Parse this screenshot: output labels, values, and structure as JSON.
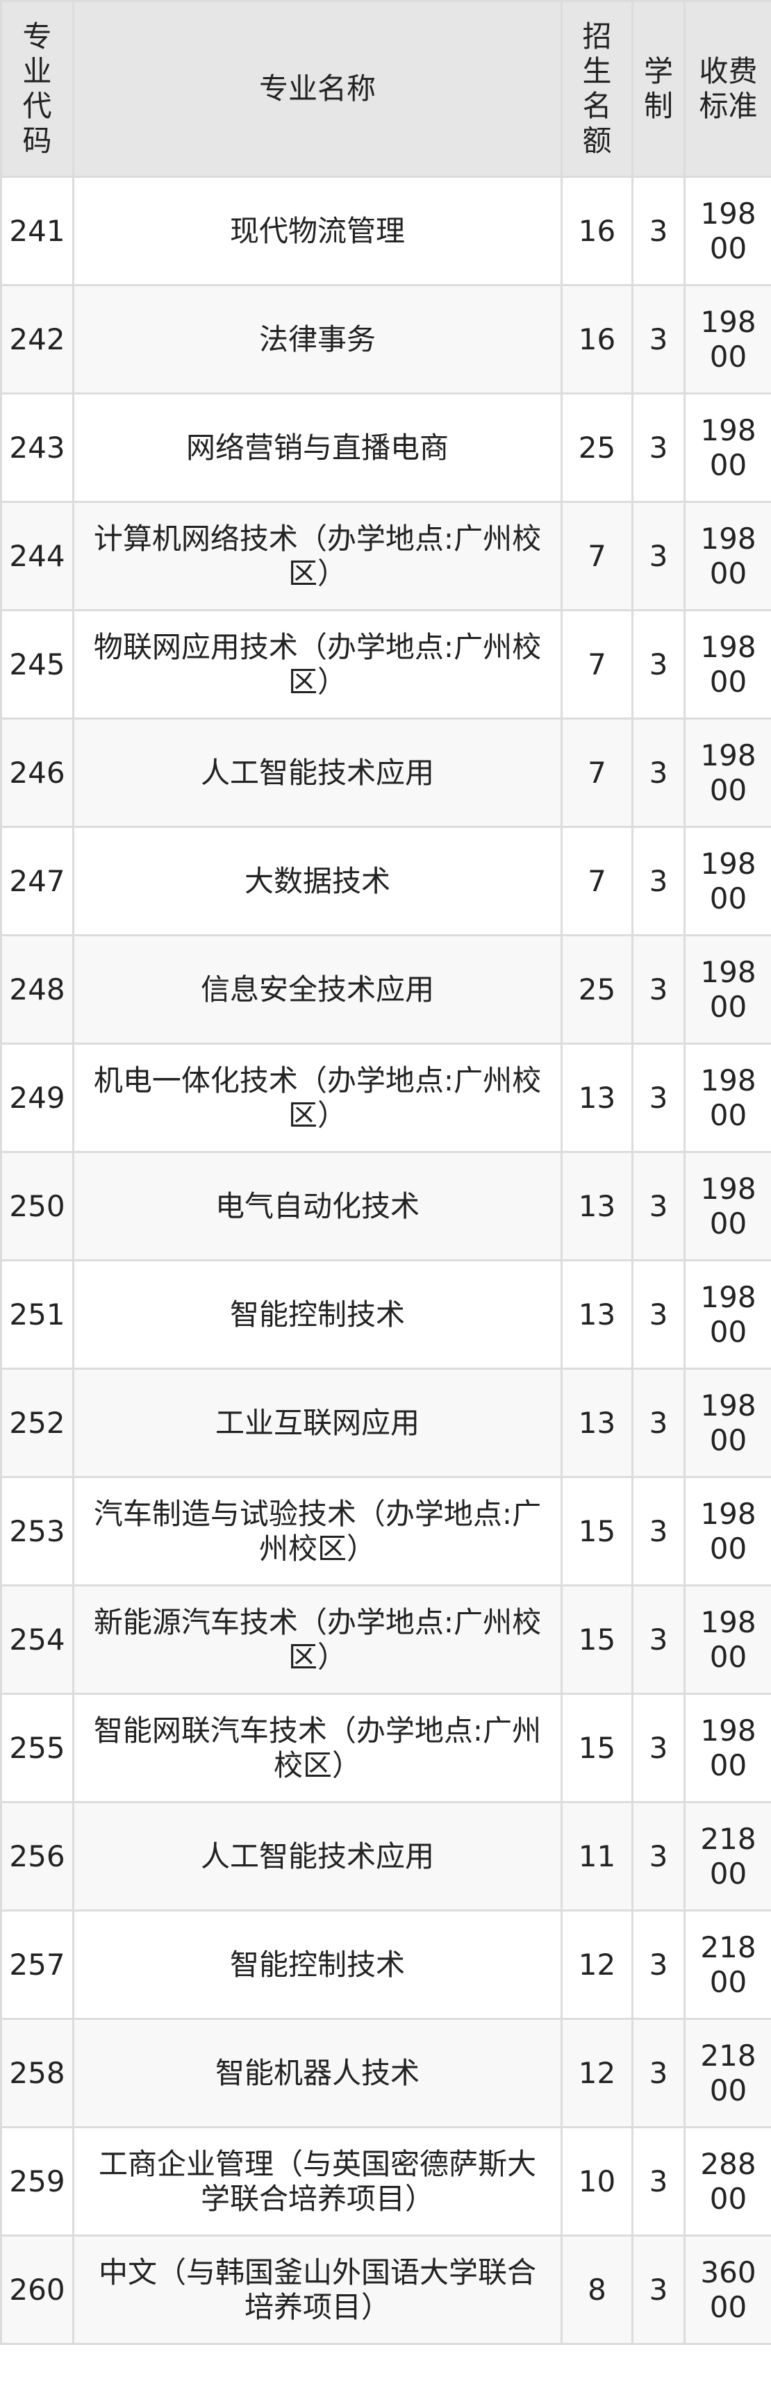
{
  "table": {
    "headers": {
      "code": "专业代码",
      "name": "专业名称",
      "quota": "招生名额",
      "duration": "学制",
      "fee": "收费标准"
    },
    "rows": [
      {
        "code": "241",
        "name": "现代物流管理",
        "quota": "16",
        "duration": "3",
        "fee": "19800"
      },
      {
        "code": "242",
        "name": "法律事务",
        "quota": "16",
        "duration": "3",
        "fee": "19800"
      },
      {
        "code": "243",
        "name": "网络营销与直播电商",
        "quota": "25",
        "duration": "3",
        "fee": "19800"
      },
      {
        "code": "244",
        "name": "计算机网络技术（办学地点:广州校区）",
        "quota": "7",
        "duration": "3",
        "fee": "19800"
      },
      {
        "code": "245",
        "name": "物联网应用技术（办学地点:广州校区）",
        "quota": "7",
        "duration": "3",
        "fee": "19800"
      },
      {
        "code": "246",
        "name": "人工智能技术应用",
        "quota": "7",
        "duration": "3",
        "fee": "19800"
      },
      {
        "code": "247",
        "name": "大数据技术",
        "quota": "7",
        "duration": "3",
        "fee": "19800"
      },
      {
        "code": "248",
        "name": "信息安全技术应用",
        "quota": "25",
        "duration": "3",
        "fee": "19800"
      },
      {
        "code": "249",
        "name": "机电一体化技术（办学地点:广州校区）",
        "quota": "13",
        "duration": "3",
        "fee": "19800"
      },
      {
        "code": "250",
        "name": "电气自动化技术",
        "quota": "13",
        "duration": "3",
        "fee": "19800"
      },
      {
        "code": "251",
        "name": "智能控制技术",
        "quota": "13",
        "duration": "3",
        "fee": "19800"
      },
      {
        "code": "252",
        "name": "工业互联网应用",
        "quota": "13",
        "duration": "3",
        "fee": "19800"
      },
      {
        "code": "253",
        "name": "汽车制造与试验技术（办学地点:广州校区）",
        "quota": "15",
        "duration": "3",
        "fee": "19800"
      },
      {
        "code": "254",
        "name": "新能源汽车技术（办学地点:广州校区）",
        "quota": "15",
        "duration": "3",
        "fee": "19800"
      },
      {
        "code": "255",
        "name": "智能网联汽车技术（办学地点:广州校区）",
        "quota": "15",
        "duration": "3",
        "fee": "19800"
      },
      {
        "code": "256",
        "name": "人工智能技术应用",
        "quota": "11",
        "duration": "3",
        "fee": "21800"
      },
      {
        "code": "257",
        "name": "智能控制技术",
        "quota": "12",
        "duration": "3",
        "fee": "21800"
      },
      {
        "code": "258",
        "name": "智能机器人技术",
        "quota": "12",
        "duration": "3",
        "fee": "21800"
      },
      {
        "code": "259",
        "name": "工商企业管理（与英国密德萨斯大学联合培养项目）",
        "quota": "10",
        "duration": "3",
        "fee": "28800"
      },
      {
        "code": "260",
        "name": "中文（与韩国釜山外国语大学联合培养项目）",
        "quota": "8",
        "duration": "3",
        "fee": "36000"
      }
    ]
  }
}
